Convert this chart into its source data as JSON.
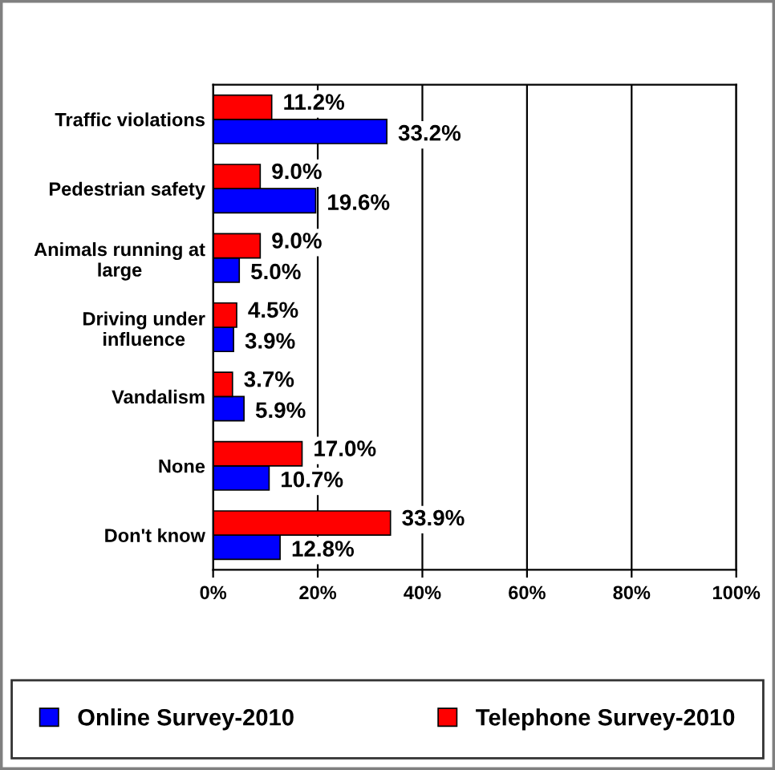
{
  "chart_data": {
    "type": "bar",
    "orientation": "horizontal",
    "categories": [
      "Traffic violations",
      "Pedestrian safety",
      "Animals running at\nlarge",
      "Driving under\ninfluence",
      "Vandalism",
      "None",
      "Don't know"
    ],
    "series": [
      {
        "name": "Online Survey-2010",
        "color": "#0000ff",
        "values": [
          33.2,
          19.6,
          5.0,
          3.9,
          5.9,
          10.7,
          12.8
        ],
        "value_labels": [
          "33.2%",
          "19.6%",
          "5.0%",
          "3.9%",
          "5.9%",
          "10.7%",
          "12.8%"
        ]
      },
      {
        "name": "Telephone Survey-2010",
        "color": "#ff0000",
        "values": [
          11.2,
          9.0,
          9.0,
          4.5,
          3.7,
          17.0,
          33.9
        ],
        "value_labels": [
          "11.2%",
          "9.0%",
          "9.0%",
          "4.5%",
          "3.7%",
          "17.0%",
          "33.9%"
        ]
      }
    ],
    "xlim": [
      0,
      100
    ],
    "xticks": [
      {
        "value": 0,
        "label": "0%"
      },
      {
        "value": 20,
        "label": "20%"
      },
      {
        "value": 40,
        "label": "40%"
      },
      {
        "value": 60,
        "label": "60%"
      },
      {
        "value": 80,
        "label": "80%"
      },
      {
        "value": 100,
        "label": "100%"
      }
    ],
    "grid": "x",
    "legend": "bottom"
  }
}
